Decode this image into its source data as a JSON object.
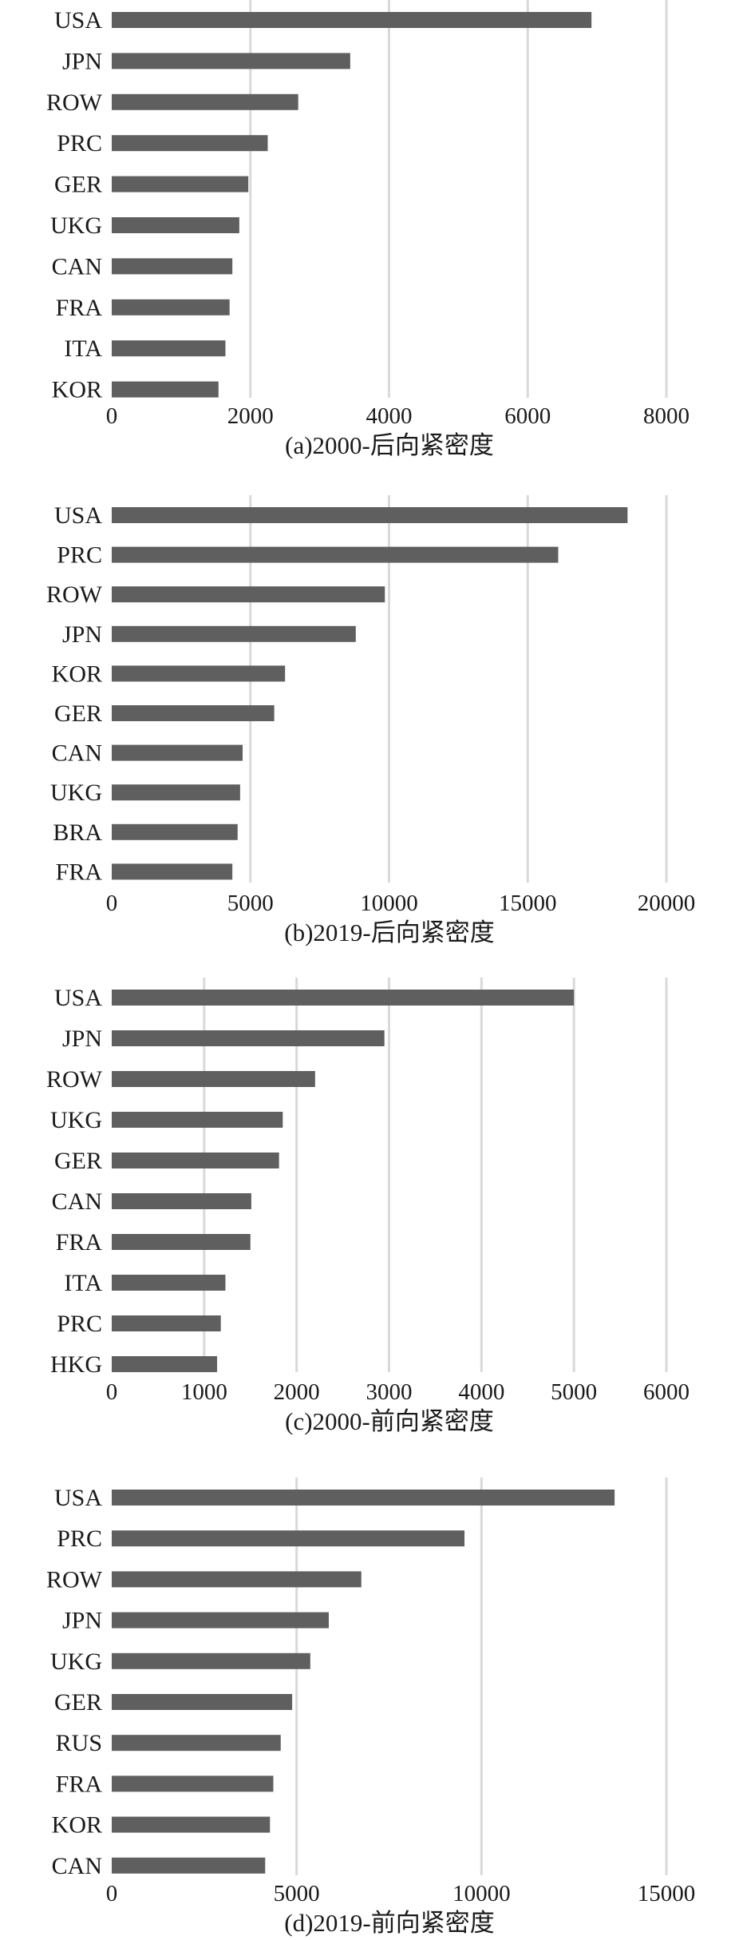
{
  "chart_data": [
    {
      "type": "bar",
      "orientation": "horizontal",
      "title": "(a)2000-后向紧密度",
      "categories": [
        "USA",
        "JPN",
        "ROW",
        "PRC",
        "GER",
        "UKG",
        "CAN",
        "FRA",
        "ITA",
        "KOR"
      ],
      "values": [
        6920,
        3440,
        2690,
        2250,
        1970,
        1840,
        1740,
        1700,
        1640,
        1540
      ],
      "xlim": [
        0,
        8000
      ],
      "ticks": [
        "0",
        "2000",
        "4000",
        "6000",
        "8000"
      ],
      "grid": true,
      "xlabel": "",
      "ylabel": ""
    },
    {
      "type": "bar",
      "orientation": "horizontal",
      "title": "(b)2019-后向紧密度",
      "categories": [
        "USA",
        "PRC",
        "ROW",
        "JPN",
        "KOR",
        "GER",
        "CAN",
        "UKG",
        "BRA",
        "FRA"
      ],
      "values": [
        18600,
        16100,
        9850,
        8800,
        6250,
        5860,
        4720,
        4630,
        4540,
        4350
      ],
      "xlim": [
        0,
        20000
      ],
      "ticks": [
        "0",
        "5000",
        "10000",
        "15000",
        "20000"
      ],
      "grid": true,
      "xlabel": "",
      "ylabel": ""
    },
    {
      "type": "bar",
      "orientation": "horizontal",
      "title": "(c)2000-前向紧密度",
      "categories": [
        "USA",
        "JPN",
        "ROW",
        "UKG",
        "GER",
        "CAN",
        "FRA",
        "ITA",
        "PRC",
        "HKG"
      ],
      "values": [
        5000,
        2950,
        2200,
        1850,
        1810,
        1510,
        1500,
        1230,
        1180,
        1140
      ],
      "xlim": [
        0,
        6000
      ],
      "ticks": [
        "0",
        "1000",
        "2000",
        "3000",
        "4000",
        "5000",
        "6000"
      ],
      "grid": true,
      "xlabel": "",
      "ylabel": ""
    },
    {
      "type": "bar",
      "orientation": "horizontal",
      "title": "(d)2019-前向紧密度",
      "categories": [
        "USA",
        "PRC",
        "ROW",
        "JPN",
        "UKG",
        "GER",
        "RUS",
        "FRA",
        "KOR",
        "CAN"
      ],
      "values": [
        13600,
        9540,
        6750,
        5870,
        5370,
        4880,
        4570,
        4370,
        4280,
        4150
      ],
      "xlim": [
        0,
        15000
      ],
      "ticks": [
        "0",
        "5000",
        "10000",
        "15000"
      ],
      "grid": true,
      "xlabel": "",
      "ylabel": ""
    }
  ]
}
